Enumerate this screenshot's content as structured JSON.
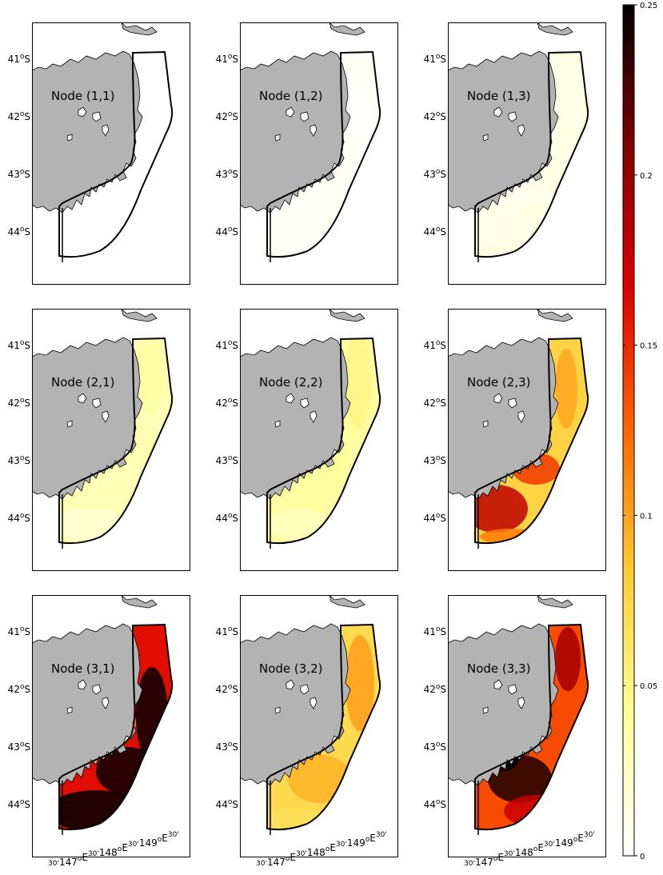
{
  "latitude_labels": [
    {
      "deg": "41",
      "sup": "o",
      "hemi": "S"
    },
    {
      "deg": "42",
      "sup": "o",
      "hemi": "S"
    },
    {
      "deg": "43",
      "sup": "o",
      "hemi": "S"
    },
    {
      "deg": "44",
      "sup": "o",
      "hemi": "S"
    }
  ],
  "longitude_labels": [
    {
      "main": "",
      "sup": "30'"
    },
    {
      "main": "147",
      "sup": "o"
    },
    {
      "main": "E",
      "sup": "30'"
    },
    {
      "main": "148",
      "sup": "o"
    },
    {
      "main": "E",
      "sup": "30'"
    },
    {
      "main": "149",
      "sup": "o"
    },
    {
      "main": "E",
      "sup": "30'"
    }
  ],
  "colorbar": {
    "ticks": [
      "0",
      "0.05",
      "0.1",
      "0.15",
      "0.2",
      "0.25"
    ],
    "tick_values": [
      0,
      0.05,
      0.1,
      0.15,
      0.2,
      0.25
    ],
    "min": 0,
    "max": 0.25,
    "colormap": [
      "#ffffff",
      "#ffff99",
      "#ffcc33",
      "#ff6600",
      "#dd0000",
      "#800000",
      "#000000"
    ]
  },
  "colors": {
    "land": "#b3b3b3",
    "coast": "#000000",
    "boundary": "#000000"
  },
  "panels": [
    {
      "label": "Node (1,1)",
      "row": 1,
      "col": 1,
      "mean": 0.0
    },
    {
      "label": "Node (1,2)",
      "row": 1,
      "col": 2,
      "mean": 0.004
    },
    {
      "label": "Node (1,3)",
      "row": 1,
      "col": 3,
      "mean": 0.012
    },
    {
      "label": "Node (2,1)",
      "row": 2,
      "col": 1,
      "mean": 0.035
    },
    {
      "label": "Node (2,2)",
      "row": 2,
      "col": 2,
      "mean": 0.045
    },
    {
      "label": "Node (2,3)",
      "row": 2,
      "col": 3,
      "mean": 0.09
    },
    {
      "label": "Node (3,1)",
      "row": 3,
      "col": 1,
      "mean": 0.19
    },
    {
      "label": "Node (3,2)",
      "row": 3,
      "col": 2,
      "mean": 0.085
    },
    {
      "label": "Node (3,3)",
      "row": 3,
      "col": 3,
      "mean": 0.16
    }
  ]
}
